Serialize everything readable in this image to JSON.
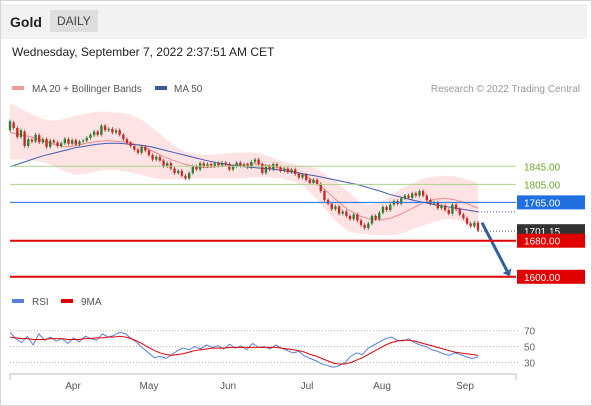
{
  "header": {
    "instrument": "Gold",
    "timeframe": "DAILY"
  },
  "timestamp": "Wednesday, September 7, 2022 2:37:51 AM CET",
  "legend": {
    "bollinger": "MA 20 + Bollinger Bands",
    "ma50": "MA 50",
    "credit": "Research © 2022 Trading Central"
  },
  "rsi_legend": {
    "rsi": "RSI",
    "ma": "9MA"
  },
  "colors": {
    "candle_up": "#2e7d32",
    "candle_down": "#c62828",
    "bollinger": "#f08a8a",
    "ma50": "#4359b8",
    "support": "#e00000",
    "resistance": "#8bc34a",
    "pivot": "#1f6fe0",
    "arrow": "#2f5f9f"
  },
  "chart_data": [
    {
      "type": "candlestick",
      "ylim": [
        1584,
        1992
      ],
      "levels": [
        {
          "label": "1845.00",
          "value": 1845,
          "kind": "resistance"
        },
        {
          "label": "1805.00",
          "value": 1805,
          "kind": "resistance"
        },
        {
          "label": "1765.00",
          "value": 1765,
          "kind": "pivot"
        },
        {
          "label": "1701.15",
          "value": 1701.15,
          "kind": "last"
        },
        {
          "label": "1680.00",
          "value": 1680,
          "kind": "support"
        },
        {
          "label": "1600.00",
          "value": 1600,
          "kind": "support"
        }
      ],
      "x_ticks": [
        "Apr",
        "May",
        "Jun",
        "Jul",
        "Aug",
        "Sep"
      ],
      "forecast_arrow": {
        "from": 1720,
        "to": 1600
      },
      "series": [
        {
          "name": "MA 50",
          "kind": "line",
          "values": [
            1844,
            1852,
            1860,
            1868,
            1874,
            1880,
            1886,
            1890,
            1894,
            1896,
            1896,
            1894,
            1892,
            1888,
            1882,
            1876,
            1870,
            1864,
            1858,
            1853,
            1849,
            1846,
            1843,
            1841,
            1839,
            1836,
            1832,
            1828,
            1824,
            1819,
            1814,
            1809,
            1804,
            1797,
            1790,
            1782,
            1776,
            1770,
            1765,
            1760,
            1756,
            1752,
            1748,
            1744
          ]
        },
        {
          "name": "MA 20",
          "kind": "line",
          "values": [
            1920,
            1915,
            1910,
            1902,
            1894,
            1888,
            1890,
            1896,
            1900,
            1902,
            1900,
            1898,
            1890,
            1880,
            1868,
            1858,
            1850,
            1844,
            1842,
            1844,
            1846,
            1848,
            1850,
            1850,
            1846,
            1840,
            1834,
            1826,
            1812,
            1792,
            1770,
            1750,
            1736,
            1728,
            1726,
            1730,
            1740,
            1752,
            1764,
            1772,
            1774,
            1770,
            1762,
            1752
          ]
        },
        {
          "name": "Bollinger Upper",
          "kind": "band",
          "values": [
            1985,
            1972,
            1960,
            1950,
            1946,
            1950,
            1958,
            1962,
            1966,
            1966,
            1964,
            1960,
            1950,
            1932,
            1912,
            1892,
            1878,
            1872,
            1870,
            1872,
            1874,
            1876,
            1876,
            1874,
            1866,
            1856,
            1850,
            1846,
            1842,
            1826,
            1810,
            1790,
            1768,
            1760,
            1764,
            1780,
            1796,
            1808,
            1818,
            1822,
            1824,
            1822,
            1816,
            1808
          ]
        },
        {
          "name": "Bollinger Lower",
          "kind": "band",
          "values": [
            1860,
            1860,
            1858,
            1854,
            1846,
            1834,
            1826,
            1828,
            1834,
            1838,
            1836,
            1832,
            1826,
            1820,
            1816,
            1816,
            1818,
            1818,
            1818,
            1818,
            1818,
            1818,
            1820,
            1820,
            1820,
            1818,
            1812,
            1800,
            1776,
            1748,
            1722,
            1702,
            1696,
            1694,
            1692,
            1692,
            1696,
            1706,
            1714,
            1722,
            1728,
            1726,
            1718,
            1706
          ]
        }
      ],
      "candles": [
        {
          "o": 1925,
          "c": 1945
        },
        {
          "o": 1942,
          "c": 1930
        },
        {
          "o": 1930,
          "c": 1910
        },
        {
          "o": 1910,
          "c": 1925
        },
        {
          "o": 1922,
          "c": 1890
        },
        {
          "o": 1890,
          "c": 1905
        },
        {
          "o": 1904,
          "c": 1900
        },
        {
          "o": 1900,
          "c": 1915
        },
        {
          "o": 1914,
          "c": 1898
        },
        {
          "o": 1898,
          "c": 1905
        },
        {
          "o": 1905,
          "c": 1888
        },
        {
          "o": 1888,
          "c": 1902
        },
        {
          "o": 1902,
          "c": 1898
        },
        {
          "o": 1898,
          "c": 1890
        },
        {
          "o": 1890,
          "c": 1896
        },
        {
          "o": 1896,
          "c": 1906
        },
        {
          "o": 1905,
          "c": 1895
        },
        {
          "o": 1895,
          "c": 1903
        },
        {
          "o": 1903,
          "c": 1893
        },
        {
          "o": 1893,
          "c": 1900
        },
        {
          "o": 1900,
          "c": 1902
        },
        {
          "o": 1902,
          "c": 1908
        },
        {
          "o": 1908,
          "c": 1915
        },
        {
          "o": 1914,
          "c": 1922
        },
        {
          "o": 1922,
          "c": 1915
        },
        {
          "o": 1915,
          "c": 1935
        },
        {
          "o": 1935,
          "c": 1925
        },
        {
          "o": 1925,
          "c": 1928
        },
        {
          "o": 1928,
          "c": 1920
        },
        {
          "o": 1920,
          "c": 1925
        },
        {
          "o": 1925,
          "c": 1915
        },
        {
          "o": 1915,
          "c": 1905
        },
        {
          "o": 1905,
          "c": 1897
        },
        {
          "o": 1897,
          "c": 1890
        },
        {
          "o": 1890,
          "c": 1882
        },
        {
          "o": 1882,
          "c": 1875
        },
        {
          "o": 1875,
          "c": 1888
        },
        {
          "o": 1888,
          "c": 1880
        },
        {
          "o": 1880,
          "c": 1870
        },
        {
          "o": 1870,
          "c": 1860
        },
        {
          "o": 1860,
          "c": 1866
        },
        {
          "o": 1866,
          "c": 1858
        },
        {
          "o": 1858,
          "c": 1845
        },
        {
          "o": 1845,
          "c": 1852
        },
        {
          "o": 1852,
          "c": 1840
        },
        {
          "o": 1840,
          "c": 1830
        },
        {
          "o": 1830,
          "c": 1835
        },
        {
          "o": 1835,
          "c": 1824
        },
        {
          "o": 1824,
          "c": 1818
        },
        {
          "o": 1818,
          "c": 1830
        },
        {
          "o": 1830,
          "c": 1845
        },
        {
          "o": 1845,
          "c": 1838
        },
        {
          "o": 1838,
          "c": 1852
        },
        {
          "o": 1852,
          "c": 1845
        },
        {
          "o": 1845,
          "c": 1850
        },
        {
          "o": 1850,
          "c": 1846
        },
        {
          "o": 1846,
          "c": 1852
        },
        {
          "o": 1852,
          "c": 1847
        },
        {
          "o": 1847,
          "c": 1853
        },
        {
          "o": 1853,
          "c": 1850
        },
        {
          "o": 1850,
          "c": 1838
        },
        {
          "o": 1838,
          "c": 1845
        },
        {
          "o": 1845,
          "c": 1853
        },
        {
          "o": 1853,
          "c": 1846
        },
        {
          "o": 1846,
          "c": 1849
        },
        {
          "o": 1849,
          "c": 1843
        },
        {
          "o": 1843,
          "c": 1855
        },
        {
          "o": 1855,
          "c": 1860
        },
        {
          "o": 1860,
          "c": 1850
        },
        {
          "o": 1850,
          "c": 1830
        },
        {
          "o": 1830,
          "c": 1845
        },
        {
          "o": 1845,
          "c": 1838
        },
        {
          "o": 1838,
          "c": 1850
        },
        {
          "o": 1850,
          "c": 1843
        },
        {
          "o": 1843,
          "c": 1835
        },
        {
          "o": 1835,
          "c": 1840
        },
        {
          "o": 1840,
          "c": 1832
        },
        {
          "o": 1832,
          "c": 1838
        },
        {
          "o": 1838,
          "c": 1828
        },
        {
          "o": 1828,
          "c": 1820
        },
        {
          "o": 1820,
          "c": 1826
        },
        {
          "o": 1826,
          "c": 1815
        },
        {
          "o": 1815,
          "c": 1808
        },
        {
          "o": 1808,
          "c": 1815
        },
        {
          "o": 1815,
          "c": 1806
        },
        {
          "o": 1806,
          "c": 1790
        },
        {
          "o": 1790,
          "c": 1770
        },
        {
          "o": 1770,
          "c": 1762
        },
        {
          "o": 1762,
          "c": 1750
        },
        {
          "o": 1750,
          "c": 1756
        },
        {
          "o": 1756,
          "c": 1740
        },
        {
          "o": 1740,
          "c": 1745
        },
        {
          "o": 1745,
          "c": 1735
        },
        {
          "o": 1735,
          "c": 1728
        },
        {
          "o": 1728,
          "c": 1738
        },
        {
          "o": 1738,
          "c": 1725
        },
        {
          "o": 1725,
          "c": 1715
        },
        {
          "o": 1715,
          "c": 1708
        },
        {
          "o": 1708,
          "c": 1718
        },
        {
          "o": 1718,
          "c": 1735
        },
        {
          "o": 1735,
          "c": 1728
        },
        {
          "o": 1728,
          "c": 1742
        },
        {
          "o": 1742,
          "c": 1755
        },
        {
          "o": 1755,
          "c": 1748
        },
        {
          "o": 1748,
          "c": 1760
        },
        {
          "o": 1760,
          "c": 1768
        },
        {
          "o": 1768,
          "c": 1762
        },
        {
          "o": 1762,
          "c": 1774
        },
        {
          "o": 1774,
          "c": 1780
        },
        {
          "o": 1780,
          "c": 1775
        },
        {
          "o": 1775,
          "c": 1785
        },
        {
          "o": 1785,
          "c": 1780
        },
        {
          "o": 1780,
          "c": 1790
        },
        {
          "o": 1790,
          "c": 1780
        },
        {
          "o": 1780,
          "c": 1770
        },
        {
          "o": 1770,
          "c": 1762
        },
        {
          "o": 1762,
          "c": 1765
        },
        {
          "o": 1765,
          "c": 1752
        },
        {
          "o": 1752,
          "c": 1758
        },
        {
          "o": 1758,
          "c": 1748
        },
        {
          "o": 1748,
          "c": 1740
        },
        {
          "o": 1740,
          "c": 1760
        },
        {
          "o": 1760,
          "c": 1750
        },
        {
          "o": 1750,
          "c": 1738
        },
        {
          "o": 1738,
          "c": 1730
        },
        {
          "o": 1730,
          "c": 1718
        },
        {
          "o": 1718,
          "c": 1712
        },
        {
          "o": 1712,
          "c": 1720
        },
        {
          "o": 1720,
          "c": 1703
        }
      ]
    },
    {
      "type": "line",
      "ylim": [
        18,
        86
      ],
      "y_ticks": [
        70,
        50,
        30
      ],
      "series": [
        {
          "name": "RSI",
          "values": [
            68,
            60,
            55,
            63,
            52,
            66,
            58,
            62,
            57,
            60,
            54,
            61,
            56,
            63,
            60,
            58,
            66,
            62,
            64,
            68,
            66,
            60,
            55,
            48,
            42,
            36,
            38,
            35,
            40,
            45,
            48,
            46,
            50,
            47,
            52,
            49,
            51,
            47,
            53,
            48,
            51,
            46,
            54,
            49,
            50,
            47,
            52,
            48,
            45,
            42,
            44,
            38,
            35,
            32,
            28,
            26,
            24,
            26,
            30,
            38,
            42,
            40,
            48,
            52,
            56,
            60,
            62,
            58,
            57,
            60,
            55,
            52,
            50,
            46,
            44,
            41,
            39,
            42,
            40,
            37,
            35,
            37
          ]
        },
        {
          "name": "9MA",
          "values": [
            62,
            61,
            60,
            60,
            59,
            59,
            59,
            60,
            60,
            60,
            59,
            59,
            59,
            60,
            60,
            61,
            61,
            62,
            62,
            63,
            62,
            60,
            57,
            53,
            49,
            45,
            42,
            40,
            39,
            40,
            41,
            43,
            45,
            46,
            47,
            48,
            48,
            48,
            49,
            49,
            49,
            49,
            49,
            49,
            49,
            49,
            49,
            48,
            47,
            46,
            45,
            43,
            40,
            38,
            35,
            32,
            29,
            28,
            28,
            30,
            33,
            36,
            40,
            44,
            48,
            52,
            55,
            57,
            58,
            58,
            57,
            55,
            53,
            51,
            49,
            47,
            45,
            43,
            42,
            41,
            40,
            39
          ]
        }
      ]
    }
  ]
}
